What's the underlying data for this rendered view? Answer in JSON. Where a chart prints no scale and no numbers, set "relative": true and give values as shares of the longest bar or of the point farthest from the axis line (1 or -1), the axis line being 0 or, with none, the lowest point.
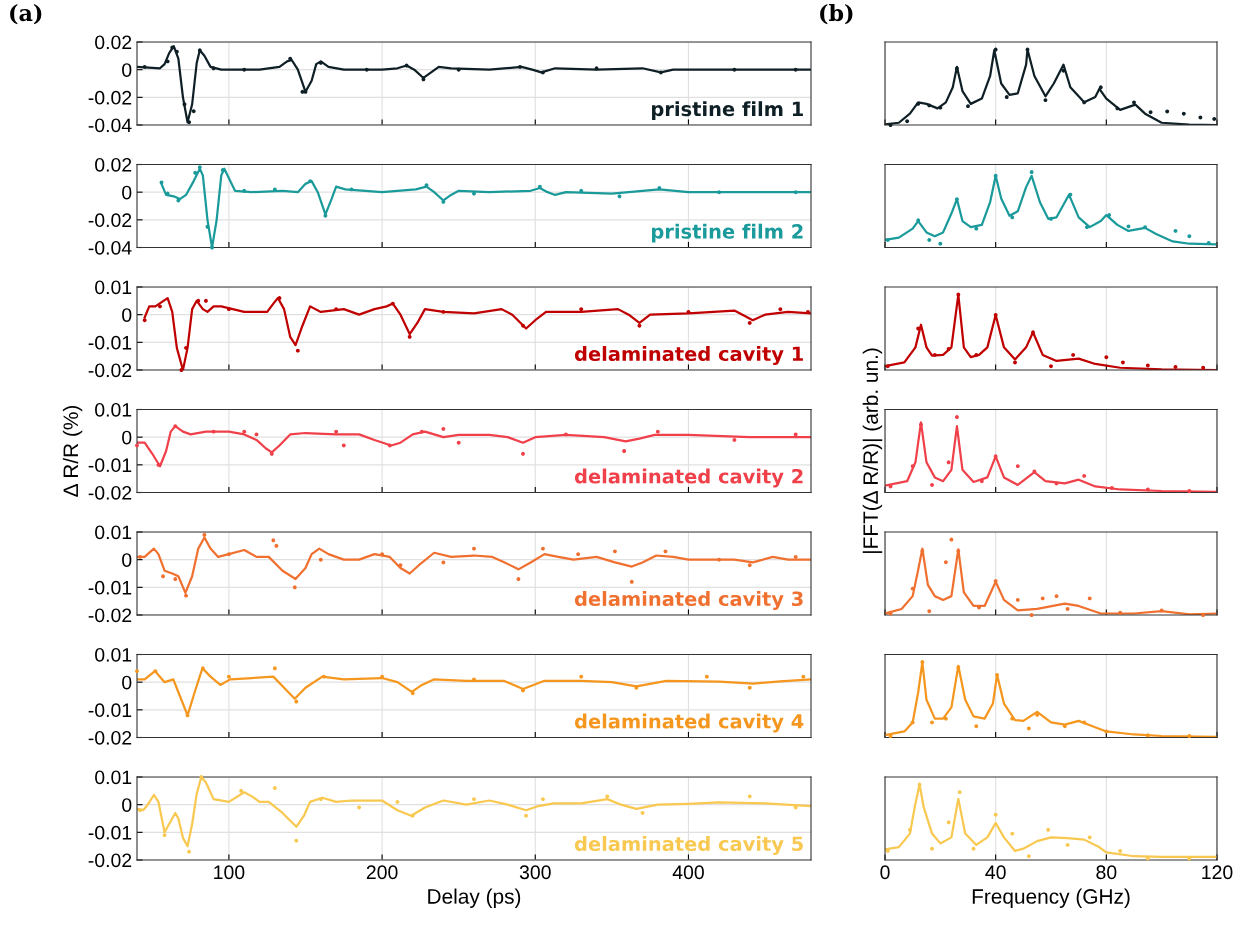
{
  "chart_data": [
    {
      "type": "line",
      "annotations": [
        "(a)"
      ],
      "xlim": [
        40,
        480
      ],
      "xticks": [
        100,
        200,
        300,
        400
      ],
      "ylim": [
        -0.04,
        0.02
      ],
      "yticks": [
        -0.04,
        -0.02,
        0,
        0.02
      ],
      "grid": true,
      "tick_labels": "y",
      "series": [
        {
          "type": "scatter",
          "marker": "circle",
          "color": "#0f1f26",
          "x": [
            45,
            60,
            63,
            66,
            71,
            74,
            77,
            81,
            90,
            110,
            140,
            148,
            150,
            160,
            190,
            216,
            227,
            250,
            290,
            305,
            340,
            382,
            430,
            470
          ],
          "values": [
            0.002,
            0.006,
            0.016,
            0.013,
            -0.025,
            -0.038,
            -0.03,
            0.014,
            0.001,
            0,
            0.008,
            -0.016,
            -0.016,
            0.005,
            0,
            0.003,
            -0.007,
            0,
            0.002,
            -0.002,
            0.001,
            -0.002,
            0,
            0
          ]
        },
        {
          "type": "line",
          "name": "pristine film 1",
          "color": "#0f1f26",
          "x": [
            40,
            55,
            58,
            61,
            64,
            67,
            70,
            73,
            76,
            79,
            81,
            84,
            88,
            95,
            120,
            133,
            138,
            141,
            145,
            150,
            154,
            157,
            160,
            165,
            175,
            200,
            210,
            216,
            221,
            227,
            232,
            237,
            245,
            270,
            291,
            298,
            304,
            313,
            340,
            370,
            382,
            390,
            420,
            480
          ],
          "values": [
            0.002,
            0.001,
            0.004,
            0.012,
            0.017,
            0.008,
            -0.02,
            -0.038,
            -0.025,
            0.005,
            0.014,
            0.01,
            0.002,
            0,
            0,
            0.002,
            0.006,
            0.007,
            0,
            -0.016,
            -0.008,
            0.004,
            0.006,
            0.002,
            0,
            0,
            0.001,
            0.003,
            0,
            -0.006,
            -0.002,
            0.002,
            0.001,
            0,
            0.002,
            0,
            -0.002,
            0.001,
            0,
            0.001,
            -0.002,
            0,
            0,
            0
          ]
        }
      ]
    },
    {
      "type": "line",
      "xlim": [
        40,
        480
      ],
      "xticks": [
        100,
        200,
        300,
        400
      ],
      "ylim": [
        -0.04,
        0.02
      ],
      "yticks": [
        -0.04,
        -0.02,
        0,
        0.02
      ],
      "grid": true,
      "tick_labels": "y",
      "series": [
        {
          "type": "scatter",
          "marker": "circle",
          "color": "#1a9a9a",
          "x": [
            56,
            60,
            67,
            78,
            81,
            86,
            89,
            96,
            110,
            130,
            153,
            163,
            180,
            229,
            240,
            260,
            303,
            330,
            355,
            381,
            420,
            470
          ],
          "values": [
            0.007,
            -0.001,
            -0.006,
            0.014,
            0.018,
            -0.025,
            -0.04,
            0.016,
            0.001,
            0.002,
            0.008,
            -0.017,
            0.002,
            0.005,
            -0.007,
            -0.001,
            0.004,
            0.001,
            -0.003,
            0.003,
            0,
            0
          ]
        },
        {
          "type": "line",
          "name": "pristine film 2",
          "color": "#1a9a9a",
          "x": [
            56,
            59,
            64,
            68,
            72,
            77,
            81,
            83,
            86,
            89,
            92,
            95,
            97,
            100,
            104,
            115,
            135,
            145,
            150,
            154,
            158,
            163,
            167,
            170,
            176,
            200,
            222,
            229,
            234,
            240,
            245,
            250,
            270,
            297,
            303,
            308,
            313,
            320,
            350,
            381,
            400,
            480
          ],
          "values": [
            0.006,
            -0.002,
            -0.003,
            -0.005,
            -0.002,
            0.008,
            0.017,
            0.012,
            -0.02,
            -0.04,
            -0.02,
            0.012,
            0.017,
            0.01,
            0.001,
            0,
            0.001,
            0,
            0.006,
            0.008,
            0,
            -0.016,
            -0.005,
            0.004,
            0.002,
            0,
            0.002,
            0.004,
            0,
            -0.006,
            -0.002,
            0.001,
            0,
            0.001,
            0.003,
            0,
            -0.002,
            0,
            -0.001,
            0.002,
            0,
            0
          ]
        }
      ]
    },
    {
      "type": "line",
      "xlim": [
        40,
        480
      ],
      "xticks": [
        100,
        200,
        300,
        400
      ],
      "ylim": [
        -0.02,
        0.01
      ],
      "yticks": [
        -0.02,
        -0.01,
        0,
        0.01
      ],
      "grid": true,
      "tick_labels": "y",
      "series": [
        {
          "type": "scatter",
          "marker": "circle",
          "color": "#c00000",
          "x": [
            45,
            55,
            69,
            72,
            80,
            85,
            100,
            133,
            145,
            170,
            207,
            218,
            240,
            292,
            330,
            368,
            400,
            440,
            460,
            478
          ],
          "values": [
            -0.002,
            0.003,
            -0.02,
            -0.012,
            0.005,
            0.005,
            0.002,
            0.006,
            -0.013,
            0.002,
            0.004,
            -0.008,
            0.001,
            -0.004,
            0.002,
            -0.004,
            0.001,
            -0.003,
            0.002,
            0.001
          ]
        },
        {
          "type": "line",
          "name": "delaminated cavity 1",
          "color": "#c00000",
          "x": [
            45,
            48,
            52,
            60,
            63,
            66,
            70,
            73,
            76,
            79,
            83,
            86,
            90,
            95,
            110,
            125,
            129,
            132,
            136,
            140,
            143.5,
            148,
            153,
            160,
            175,
            185,
            195,
            203,
            207,
            212,
            218,
            223,
            228,
            240,
            260,
            278,
            285,
            294,
            300,
            307,
            330,
            354,
            361,
            368,
            375,
            400,
            430,
            442,
            450,
            465,
            480
          ],
          "values": [
            -0.001,
            0.003,
            0.003,
            0.006,
            0.001,
            -0.012,
            -0.02,
            -0.012,
            0.002,
            0.005,
            0.002,
            0.001,
            0.003,
            0.003,
            0.001,
            0.001,
            0.004,
            0.006,
            0.002,
            -0.008,
            -0.011,
            -0.004,
            0.003,
            0.001,
            0.002,
            0,
            0.002,
            0.003,
            0.004,
            0,
            -0.007,
            -0.003,
            0.002,
            0.001,
            0.0005,
            0.002,
            0,
            -0.005,
            -0.002,
            0.001,
            0.001,
            0.002,
            0,
            -0.003,
            0,
            0.0005,
            0.0015,
            -0.002,
            0,
            0.001,
            0.0005
          ]
        }
      ]
    },
    {
      "type": "line",
      "ylabel": "Δ R/R (%)",
      "xlim": [
        40,
        480
      ],
      "xticks": [
        100,
        200,
        300,
        400
      ],
      "ylim": [
        -0.02,
        0.01
      ],
      "yticks": [
        -0.02,
        -0.01,
        0,
        0.01
      ],
      "grid": true,
      "tick_labels": "y",
      "series": [
        {
          "type": "scatter",
          "marker": "circle",
          "color": "#f0404a",
          "x": [
            40,
            54,
            65,
            90,
            110,
            118,
            128,
            170,
            175,
            205,
            226,
            240,
            250,
            292,
            320,
            358,
            380,
            430,
            470
          ],
          "values": [
            -0.003,
            -0.01,
            0.004,
            0.002,
            0.002,
            0.001,
            -0.006,
            0.002,
            -0.003,
            -0.003,
            0.002,
            0.003,
            -0.002,
            -0.006,
            0.001,
            -0.005,
            0.002,
            -0.001,
            0.001
          ]
        },
        {
          "type": "line",
          "name": "delaminated cavity 2",
          "color": "#f0404a",
          "x": [
            40,
            45,
            50,
            55,
            59,
            62,
            65,
            70,
            75,
            85,
            100,
            110,
            118,
            124,
            128,
            133,
            140,
            150,
            170,
            185,
            195,
            206,
            212,
            220,
            228,
            240,
            250,
            270,
            282,
            292,
            300,
            320,
            345,
            359,
            368,
            378,
            400,
            440,
            480
          ],
          "values": [
            -0.002,
            -0.002,
            -0.006,
            -0.0105,
            -0.005,
            0.002,
            0.004,
            0.002,
            0.001,
            0.002,
            0.002,
            0.001,
            -0.001,
            -0.004,
            -0.0055,
            -0.003,
            0.001,
            0.0015,
            0.001,
            0.001,
            -0.001,
            -0.003,
            -0.002,
            0.001,
            0.002,
            0,
            0.0008,
            0.0008,
            0,
            -0.002,
            0,
            0.0008,
            0,
            -0.0015,
            -0.0005,
            0.0008,
            0.0008,
            0,
            0
          ]
        }
      ]
    },
    {
      "type": "line",
      "xlim": [
        40,
        480
      ],
      "xticks": [
        100,
        200,
        300,
        400
      ],
      "ylim": [
        -0.02,
        0.01
      ],
      "yticks": [
        -0.02,
        -0.01,
        0,
        0.01
      ],
      "grid": true,
      "tick_labels": "y",
      "series": [
        {
          "type": "scatter",
          "marker": "circle",
          "color": "#f07030",
          "x": [
            42,
            57,
            65,
            72,
            84,
            100,
            129,
            131,
            143,
            160,
            200,
            212,
            240,
            260,
            289,
            305,
            328,
            352,
            363,
            385,
            420,
            440,
            470
          ],
          "values": [
            0.001,
            -0.006,
            -0.007,
            -0.013,
            0.009,
            0.002,
            0.007,
            0.005,
            -0.01,
            0,
            0.002,
            -0.002,
            -0.001,
            0.004,
            -0.007,
            0.004,
            0.002,
            0.003,
            -0.008,
            0.003,
            0,
            -0.002,
            0.001
          ]
        },
        {
          "type": "line",
          "name": "delaminated cavity 3",
          "color": "#f07030",
          "x": [
            40,
            45,
            51,
            54,
            58,
            63,
            67,
            71.6,
            76,
            80,
            84,
            88,
            93,
            100,
            110,
            118,
            126,
            135,
            143.5,
            150,
            154,
            159,
            165,
            175,
            185,
            195,
            205,
            212,
            218,
            224,
            234,
            245,
            260,
            272,
            280,
            289,
            297,
            306,
            315,
            325,
            340,
            352,
            363,
            370,
            379,
            390,
            400,
            430,
            442,
            455,
            465,
            480
          ],
          "values": [
            0.001,
            0.001,
            0.004,
            0.002,
            -0.004,
            -0.005,
            -0.006,
            -0.012,
            -0.006,
            0.004,
            0.008,
            0.004,
            0.001,
            0.002,
            0.0035,
            0.001,
            0.001,
            -0.004,
            -0.007,
            -0.003,
            0.002,
            0.004,
            0.002,
            0,
            0,
            0.002,
            0.001,
            -0.003,
            -0.005,
            -0.002,
            0.0025,
            0.001,
            0.0015,
            0.001,
            -0.001,
            -0.0035,
            -0.001,
            0.002,
            0.001,
            0,
            0.001,
            -0.001,
            -0.0025,
            -0.001,
            0.0015,
            0.001,
            0,
            0,
            -0.001,
            0.001,
            0,
            0
          ]
        }
      ]
    },
    {
      "type": "line",
      "xlim": [
        40,
        480
      ],
      "xticks": [
        100,
        200,
        300,
        400
      ],
      "ylim": [
        -0.02,
        0.01
      ],
      "yticks": [
        -0.02,
        -0.01,
        0,
        0.01
      ],
      "grid": true,
      "tick_labels": "y",
      "series": [
        {
          "type": "scatter",
          "marker": "circle",
          "color": "#f5961e",
          "x": [
            40,
            52,
            73,
            83,
            100,
            130,
            144,
            162,
            200,
            220,
            260,
            292,
            330,
            366,
            412,
            440,
            475
          ],
          "values": [
            0.004,
            0.004,
            -0.012,
            0.005,
            0.002,
            0.005,
            -0.007,
            0.002,
            0.002,
            -0.004,
            0.001,
            -0.003,
            0.002,
            -0.002,
            0.002,
            -0.002,
            0.002
          ]
        },
        {
          "type": "line",
          "name": "delaminated cavity 4",
          "color": "#f5961e",
          "x": [
            40,
            45,
            51.7,
            58,
            63.7,
            68,
            73,
            78,
            82.7,
            88,
            94.4,
            100.8,
            115,
            129,
            136,
            143,
            150,
            161,
            175,
            200,
            210,
            219.4,
            226,
            233.7,
            255,
            279.5,
            292,
            306,
            330,
            350,
            366,
            385.6,
            420,
            442.5,
            460,
            480
          ],
          "values": [
            0.001,
            0.001,
            0.004,
            0,
            0.001,
            -0.005,
            -0.012,
            -0.003,
            0.005,
            0.002,
            -0.001,
            0.001,
            0.0015,
            0.002,
            -0.002,
            -0.006,
            -0.002,
            0.002,
            0.001,
            0.0015,
            0,
            -0.0035,
            -0.001,
            0.001,
            0.0005,
            0.0005,
            -0.0025,
            0.0005,
            0.0005,
            0,
            -0.0015,
            0.0005,
            0.0002,
            -0.0005,
            0.0003,
            0.001
          ]
        }
      ]
    },
    {
      "type": "line",
      "xlabel": "Delay (ps)",
      "xlim": [
        40,
        480
      ],
      "xticks": [
        100,
        200,
        300,
        400
      ],
      "ylim": [
        -0.02,
        0.01
      ],
      "yticks": [
        -0.02,
        -0.01,
        0,
        0.01
      ],
      "grid": true,
      "series": [
        {
          "type": "scatter",
          "marker": "circle",
          "color": "#f8c850",
          "x": [
            42,
            58,
            74,
            82,
            108,
            130,
            144,
            160,
            185,
            210,
            220,
            260,
            294,
            305,
            347,
            370,
            440,
            470
          ],
          "values": [
            -0.002,
            -0.011,
            -0.017,
            0.01,
            0.005,
            0.006,
            -0.013,
            0.002,
            -0.001,
            0.001,
            -0.004,
            0.002,
            -0.004,
            0.002,
            0.003,
            -0.003,
            0.003,
            -0.001
          ]
        },
        {
          "type": "line",
          "name": "delaminated cavity 5",
          "color": "#f8c850",
          "x": [
            40,
            44,
            47,
            51,
            54,
            58,
            62,
            65,
            67,
            70,
            73,
            76,
            79,
            82,
            85,
            90,
            100,
            110,
            115,
            120,
            126,
            135,
            144,
            149,
            153,
            161,
            170,
            180,
            200,
            210,
            219,
            228,
            240,
            255,
            270,
            282,
            294,
            302,
            312,
            330,
            347,
            356,
            366,
            380,
            400,
            420,
            450,
            480
          ],
          "values": [
            -0.0015,
            -0.002,
            0,
            0.0035,
            0.001,
            -0.01,
            -0.006,
            -0.003,
            -0.005,
            -0.012,
            -0.015,
            -0.007,
            0.004,
            0.01,
            0.008,
            0.002,
            0.001,
            0.0045,
            0.003,
            0.001,
            0.001,
            -0.003,
            -0.008,
            -0.004,
            0.001,
            0.0025,
            0.001,
            0.0015,
            0.0015,
            -0.002,
            -0.004,
            -0.001,
            0.0015,
            0,
            0.0015,
            0,
            -0.002,
            -0.0005,
            0.0005,
            0.0005,
            0.002,
            0,
            -0.0015,
            0,
            0.0003,
            0.0008,
            0.0005,
            -0.0005
          ]
        }
      ]
    },
    {
      "type": "line",
      "annotations": [
        "(b)"
      ],
      "relative": true,
      "xlim": [
        0,
        120
      ],
      "xticks": [
        0,
        40,
        80,
        120
      ],
      "grid": "x",
      "tick_labels": false,
      "series": [
        {
          "type": "scatter",
          "marker": "circle",
          "color": "#0f1f26",
          "x": [
            2,
            8,
            12,
            16,
            20,
            26,
            30,
            40,
            44,
            51.5,
            58,
            64.5,
            72,
            78,
            84,
            90,
            96,
            102,
            108,
            114,
            119
          ],
          "values": [
            0,
            0.05,
            0.28,
            0.26,
            0.23,
            0.75,
            0.25,
            1.0,
            0.37,
            1.0,
            0.33,
            0.72,
            0.3,
            0.5,
            0.22,
            0.3,
            0.17,
            0.18,
            0.15,
            0.1,
            0.08
          ]
        },
        {
          "type": "line",
          "color": "#0f1f26",
          "x": [
            0,
            5,
            9,
            12,
            15,
            19,
            22,
            24.5,
            26,
            28,
            31,
            35,
            38,
            39.5,
            42,
            45,
            48,
            51,
            51.5,
            54,
            58,
            61,
            64.5,
            67,
            72,
            76,
            77.5,
            80,
            85,
            90.5,
            94,
            100,
            110,
            120
          ],
          "values": [
            0.01,
            0.03,
            0.15,
            0.3,
            0.28,
            0.22,
            0.3,
            0.5,
            0.77,
            0.45,
            0.28,
            0.35,
            0.65,
            0.99,
            0.55,
            0.4,
            0.42,
            0.8,
            1.0,
            0.65,
            0.38,
            0.55,
            0.8,
            0.5,
            0.3,
            0.37,
            0.48,
            0.35,
            0.2,
            0.27,
            0.15,
            0.03,
            0.005,
            0
          ]
        }
      ]
    },
    {
      "type": "line",
      "relative": true,
      "xlim": [
        0,
        120
      ],
      "xticks": [
        0,
        40,
        80,
        120
      ],
      "grid": "x",
      "tick_labels": false,
      "series": [
        {
          "type": "scatter",
          "marker": "circle",
          "color": "#1a9a9a",
          "x": [
            1,
            12,
            16,
            20,
            26,
            33,
            40,
            46,
            53,
            60,
            67,
            73,
            81,
            88,
            94,
            105,
            110,
            117
          ],
          "values": [
            0.1,
            0.36,
            0.1,
            0.05,
            0.64,
            0.25,
            0.95,
            0.4,
            1.0,
            0.38,
            0.7,
            0.27,
            0.43,
            0.28,
            0.27,
            0.22,
            0.15,
            0.06
          ]
        },
        {
          "type": "line",
          "color": "#1a9a9a",
          "x": [
            0,
            5,
            10,
            12,
            15,
            18,
            21,
            24,
            26,
            28,
            31,
            35,
            38,
            40,
            42,
            45,
            48,
            51,
            53,
            56,
            59,
            62,
            66.5,
            70,
            74,
            78,
            80,
            84,
            88,
            94,
            98,
            104,
            110,
            120
          ],
          "values": [
            0.1,
            0.13,
            0.25,
            0.35,
            0.2,
            0.15,
            0.2,
            0.45,
            0.64,
            0.35,
            0.27,
            0.3,
            0.6,
            0.95,
            0.65,
            0.42,
            0.48,
            0.8,
            0.95,
            0.6,
            0.38,
            0.4,
            0.7,
            0.4,
            0.27,
            0.35,
            0.43,
            0.3,
            0.22,
            0.26,
            0.18,
            0.08,
            0.05,
            0.04
          ]
        }
      ]
    },
    {
      "type": "line",
      "relative": true,
      "xlim": [
        0,
        120
      ],
      "xticks": [
        0,
        40,
        80,
        120
      ],
      "grid": "x",
      "tick_labels": false,
      "series": [
        {
          "type": "scatter",
          "marker": "circle",
          "color": "#c00000",
          "x": [
            1,
            12,
            18,
            23,
            26.5,
            33,
            40,
            47,
            53.5,
            60,
            68,
            80,
            86,
            95,
            105,
            115
          ],
          "values": [
            0.05,
            0.55,
            0.2,
            0.28,
            1.0,
            0.2,
            0.73,
            0.1,
            0.5,
            0.05,
            0.2,
            0.17,
            0.1,
            0.06,
            0.04,
            0.03
          ]
        },
        {
          "type": "line",
          "color": "#c00000",
          "x": [
            0,
            7,
            11,
            13,
            15,
            17,
            21,
            24,
            26.5,
            28.5,
            31,
            34,
            37,
            40,
            43,
            47,
            51,
            53.5,
            57,
            62,
            70,
            76,
            85,
            100,
            120
          ],
          "values": [
            0.05,
            0.1,
            0.3,
            0.6,
            0.3,
            0.19,
            0.2,
            0.3,
            1.0,
            0.3,
            0.17,
            0.2,
            0.3,
            0.73,
            0.3,
            0.14,
            0.3,
            0.5,
            0.2,
            0.12,
            0.15,
            0.08,
            0.03,
            0.01,
            0
          ]
        }
      ]
    },
    {
      "type": "line",
      "ylabel": "|FFT(Δ R/R)| (arb. un.)",
      "relative": true,
      "xlim": [
        0,
        120
      ],
      "xticks": [
        0,
        40,
        80,
        120
      ],
      "grid": "x",
      "tick_labels": false,
      "series": [
        {
          "type": "scatter",
          "marker": "circle",
          "color": "#f0404a",
          "x": [
            2,
            10,
            13,
            17,
            23,
            26,
            35,
            40,
            48,
            54,
            62,
            72,
            82,
            95,
            110
          ],
          "values": [
            0.08,
            0.35,
            0.9,
            0.1,
            0.4,
            1.0,
            0.15,
            0.48,
            0.35,
            0.28,
            0.12,
            0.22,
            0.06,
            0.04,
            0.02
          ]
        },
        {
          "type": "line",
          "color": "#f0404a",
          "x": [
            0,
            8,
            11,
            13,
            15,
            18,
            21,
            24,
            26,
            28,
            32,
            37,
            40,
            43,
            48,
            54,
            58,
            65,
            70,
            76,
            85,
            100,
            120
          ],
          "values": [
            0.09,
            0.15,
            0.4,
            0.93,
            0.4,
            0.2,
            0.15,
            0.3,
            0.88,
            0.3,
            0.14,
            0.2,
            0.48,
            0.2,
            0.1,
            0.27,
            0.15,
            0.12,
            0.17,
            0.08,
            0.04,
            0.02,
            0.01
          ]
        }
      ]
    },
    {
      "type": "line",
      "relative": true,
      "xlim": [
        0,
        120
      ],
      "xticks": [
        0,
        40,
        80,
        120
      ],
      "grid": "x",
      "tick_labels": false,
      "series": [
        {
          "type": "scatter",
          "marker": "circle",
          "color": "#f07030",
          "x": [
            2,
            10,
            13.5,
            16,
            22,
            24,
            26.5,
            34,
            40,
            48,
            53,
            57,
            62,
            66,
            74,
            85,
            100,
            115
          ],
          "values": [
            0.02,
            0.35,
            0.85,
            0.05,
            0.7,
            1.0,
            0.85,
            0.1,
            0.45,
            0.2,
            0,
            0.22,
            0.25,
            0.08,
            0.22,
            0.03,
            0.06,
            0
          ]
        },
        {
          "type": "line",
          "color": "#f07030",
          "x": [
            0,
            6,
            10,
            12,
            13.5,
            15.5,
            18,
            21,
            24,
            26.5,
            28.5,
            32,
            36,
            40,
            43,
            48,
            55,
            65,
            70,
            78,
            90,
            100,
            110,
            120
          ],
          "values": [
            0.02,
            0.08,
            0.25,
            0.6,
            0.88,
            0.4,
            0.25,
            0.2,
            0.25,
            0.87,
            0.3,
            0.12,
            0.12,
            0.44,
            0.2,
            0.06,
            0.08,
            0.15,
            0.12,
            0.02,
            0.02,
            0.05,
            0.01,
            0.02
          ]
        }
      ]
    },
    {
      "type": "line",
      "relative": true,
      "xlim": [
        0,
        120
      ],
      "xticks": [
        0,
        40,
        80,
        120
      ],
      "grid": "x",
      "tick_labels": false,
      "series": [
        {
          "type": "scatter",
          "marker": "circle",
          "color": "#f5961e",
          "x": [
            2,
            10,
            13.5,
            17,
            22,
            26.5,
            33,
            40.5,
            46,
            52,
            55,
            65,
            72,
            80,
            95,
            110
          ],
          "values": [
            0.02,
            0.2,
            1.0,
            0.2,
            0.25,
            0.93,
            0.15,
            0.83,
            0.25,
            0.12,
            0.3,
            0.15,
            0.2,
            0.08,
            0.03,
            0.02
          ]
        },
        {
          "type": "line",
          "color": "#f5961e",
          "x": [
            0,
            7,
            10,
            12,
            13.5,
            15,
            18,
            21,
            24,
            26.5,
            29,
            32,
            36,
            39,
            40.5,
            43,
            47,
            50,
            55,
            60,
            65,
            70,
            75,
            80,
            90,
            100,
            120
          ],
          "values": [
            0.03,
            0.08,
            0.2,
            0.6,
            1.0,
            0.5,
            0.25,
            0.25,
            0.4,
            0.95,
            0.5,
            0.28,
            0.25,
            0.45,
            0.83,
            0.45,
            0.23,
            0.22,
            0.34,
            0.2,
            0.17,
            0.22,
            0.15,
            0.08,
            0.04,
            0.02,
            0.01
          ]
        }
      ]
    },
    {
      "type": "line",
      "xlabel": "Frequency (GHz)",
      "relative": true,
      "xlim": [
        0,
        120
      ],
      "xticks": [
        0,
        40,
        80,
        120
      ],
      "grid": "x",
      "tick_labels": "x",
      "series": [
        {
          "type": "scatter",
          "marker": "circle",
          "color": "#f8c850",
          "x": [
            1,
            9,
            12.5,
            17,
            23,
            27,
            32,
            40,
            46,
            52,
            59,
            66,
            74,
            85,
            95,
            110
          ],
          "values": [
            0.12,
            0.4,
            1.0,
            0.15,
            0.5,
            0.9,
            0.15,
            0.6,
            0.35,
            0.05,
            0.4,
            0.2,
            0.3,
            0.12,
            0.02,
            0.02
          ]
        },
        {
          "type": "line",
          "color": "#f8c850",
          "x": [
            0,
            5,
            9,
            11,
            12.5,
            14,
            17,
            20,
            24,
            26.5,
            29,
            33,
            37,
            40,
            43,
            47,
            50,
            55,
            60,
            66,
            72,
            77,
            80,
            90,
            100,
            120
          ],
          "values": [
            0.14,
            0.17,
            0.35,
            0.75,
            1.0,
            0.7,
            0.35,
            0.22,
            0.3,
            0.81,
            0.35,
            0.2,
            0.3,
            0.49,
            0.3,
            0.12,
            0.15,
            0.25,
            0.3,
            0.29,
            0.27,
            0.18,
            0.1,
            0.05,
            0.04,
            0.04
          ]
        }
      ]
    }
  ]
}
